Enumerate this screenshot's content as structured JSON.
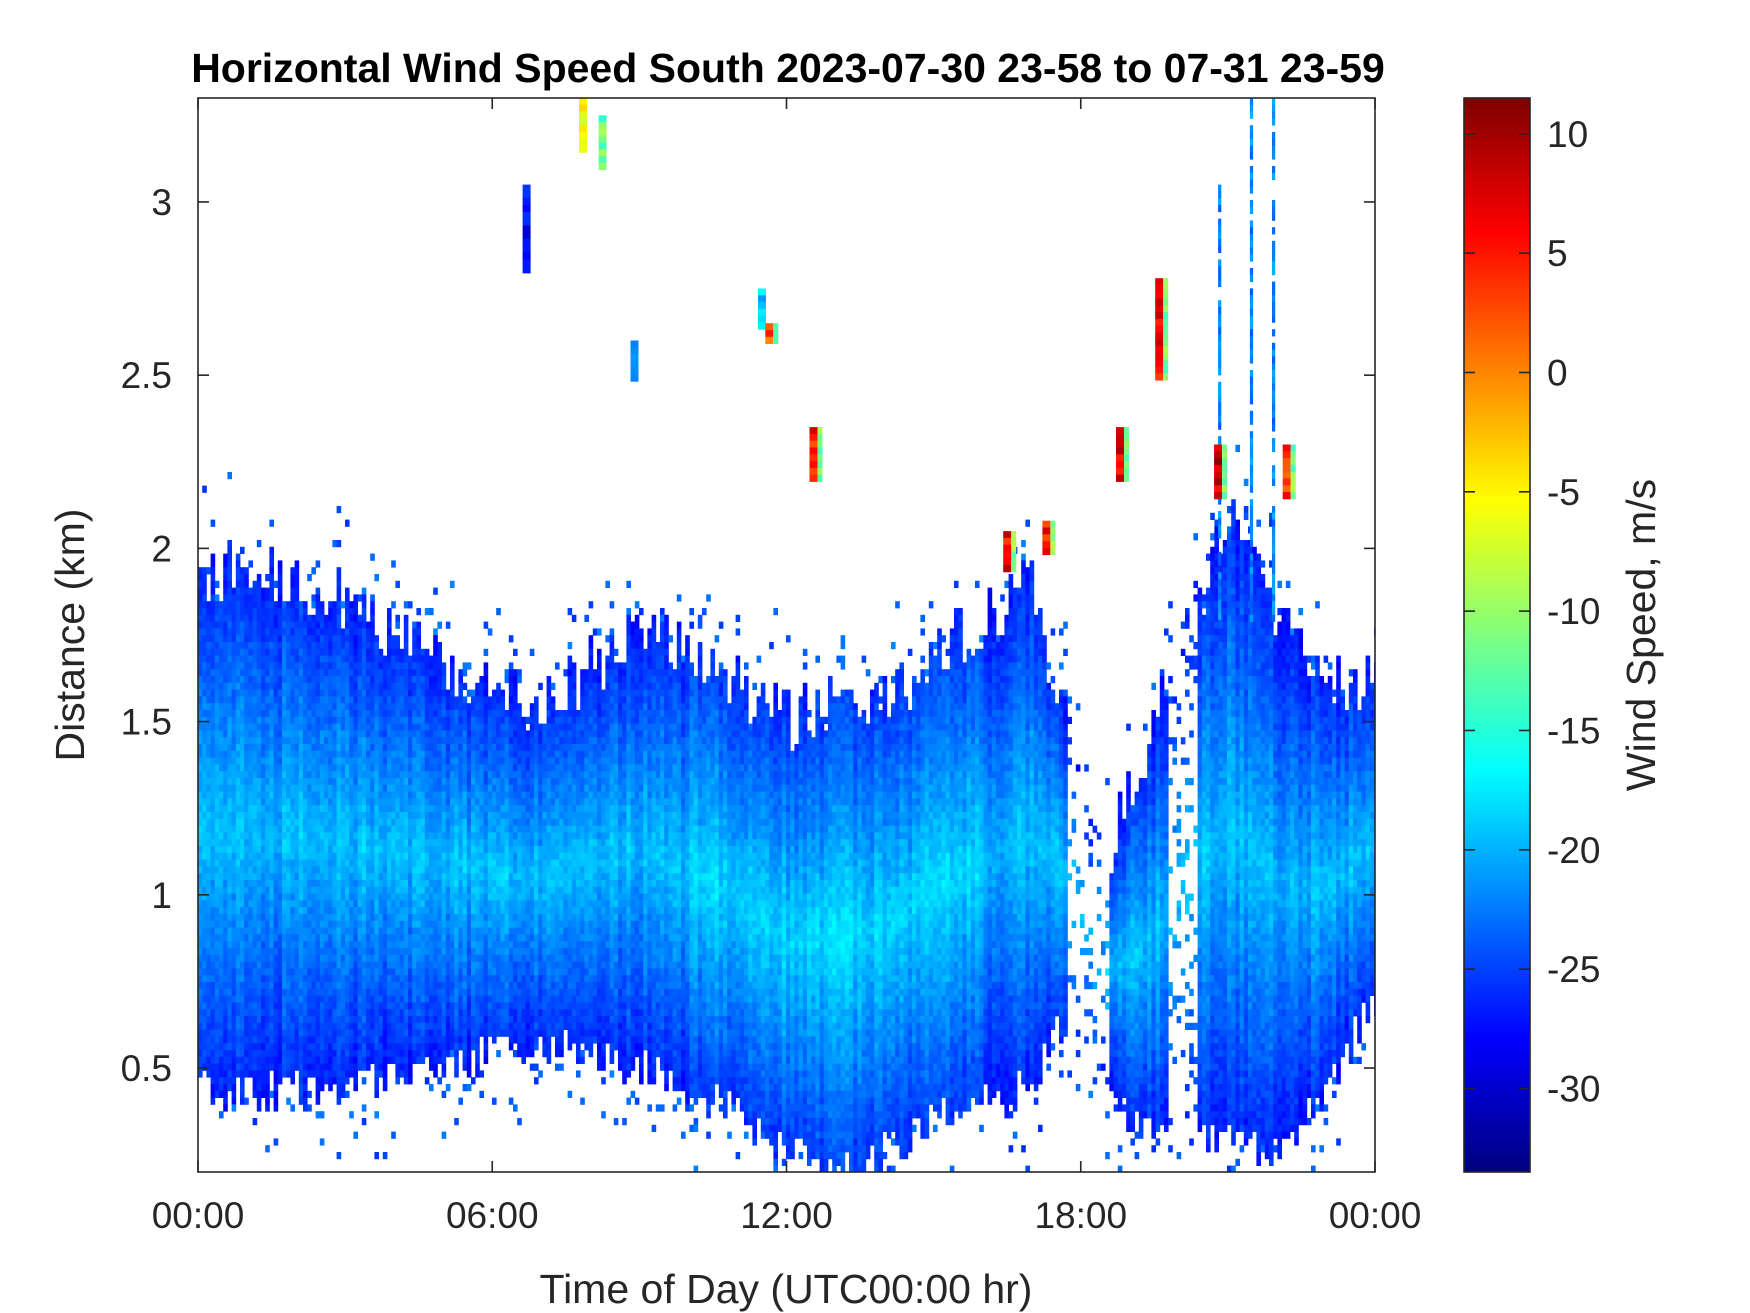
{
  "chart_data": {
    "type": "heatmap",
    "title": "Horizontal Wind Speed South 2023-07-30 23-58 to 07-31 23-59",
    "xlabel": "Time of Day (UTC00:00 hr)",
    "ylabel": "Distance (km)",
    "x_ticks": [
      "00:00",
      "06:00",
      "12:00",
      "18:00",
      "00:00"
    ],
    "x_tick_hours": [
      0,
      6,
      12,
      18,
      24
    ],
    "xlim_hours": [
      0,
      24
    ],
    "y_ticks": [
      "0.5",
      "1",
      "1.5",
      "2",
      "2.5",
      "3"
    ],
    "y_tick_values": [
      0.5,
      1,
      1.5,
      2,
      2.5,
      3
    ],
    "ylim": [
      0.2,
      3.3
    ],
    "colorbar": {
      "label": "Wind Speed, m/s",
      "ticks": [
        "10",
        "5",
        "0",
        "-5",
        "-10",
        "-15",
        "-20",
        "-25",
        "-30"
      ],
      "tick_values": [
        10,
        5,
        0,
        -5,
        -10,
        -15,
        -20,
        -25,
        -30
      ],
      "clim": [
        -33.5,
        11.5
      ],
      "colormap": "jet"
    },
    "grid": false,
    "data_extent": [
      {
        "hours": 0,
        "bottom_km": 0.45,
        "top_km": 1.9
      },
      {
        "hours": 1,
        "bottom_km": 0.42,
        "top_km": 1.97
      },
      {
        "hours": 2,
        "bottom_km": 0.45,
        "top_km": 1.9
      },
      {
        "hours": 3,
        "bottom_km": 0.45,
        "top_km": 1.85
      },
      {
        "hours": 4,
        "bottom_km": 0.5,
        "top_km": 1.75
      },
      {
        "hours": 5,
        "bottom_km": 0.5,
        "top_km": 1.68
      },
      {
        "hours": 6,
        "bottom_km": 0.55,
        "top_km": 1.58
      },
      {
        "hours": 7,
        "bottom_km": 0.55,
        "top_km": 1.55
      },
      {
        "hours": 8,
        "bottom_km": 0.55,
        "top_km": 1.65
      },
      {
        "hours": 9,
        "bottom_km": 0.5,
        "top_km": 1.78
      },
      {
        "hours": 10,
        "bottom_km": 0.45,
        "top_km": 1.7
      },
      {
        "hours": 11,
        "bottom_km": 0.38,
        "top_km": 1.6
      },
      {
        "hours": 12,
        "bottom_km": 0.25,
        "top_km": 1.5
      },
      {
        "hours": 13,
        "bottom_km": 0.2,
        "top_km": 1.55
      },
      {
        "hours": 14,
        "bottom_km": 0.25,
        "top_km": 1.55
      },
      {
        "hours": 15,
        "bottom_km": 0.35,
        "top_km": 1.7
      },
      {
        "hours": 16,
        "bottom_km": 0.4,
        "top_km": 1.78
      },
      {
        "hours": 17,
        "bottom_km": 0.45,
        "top_km": 1.9
      },
      {
        "hours": 17.5,
        "bottom_km": 0.6,
        "top_km": 1.6
      },
      {
        "hours": 18.5,
        "bottom_km": 0.45,
        "top_km": 1.1
      },
      {
        "hours": 19.3,
        "bottom_km": 0.3,
        "top_km": 1.4
      },
      {
        "hours": 21,
        "bottom_km": 0.3,
        "top_km": 2.1
      },
      {
        "hours": 22,
        "bottom_km": 0.25,
        "top_km": 1.8
      },
      {
        "hours": 23,
        "bottom_km": 0.45,
        "top_km": 1.6
      },
      {
        "hours": 24,
        "bottom_km": 0.7,
        "top_km": 1.6
      }
    ],
    "features": [
      {
        "hours": 6.7,
        "km_from": 2.8,
        "km_to": 3.05,
        "speed": -27
      },
      {
        "hours": 7.85,
        "km_from": 3.15,
        "km_to": 3.3,
        "speed": -6
      },
      {
        "hours": 8.25,
        "km_from": 3.1,
        "km_to": 3.25,
        "speed": -12
      },
      {
        "hours": 8.9,
        "km_from": 2.5,
        "km_to": 2.6,
        "speed": -22
      },
      {
        "hours": 11.5,
        "km_from": 2.65,
        "km_to": 2.75,
        "speed": -18
      },
      {
        "hours": 11.65,
        "km_from": 2.6,
        "km_to": 2.65,
        "speed": 2
      },
      {
        "hours": 12.55,
        "km_from": 2.2,
        "km_to": 2.35,
        "speed": 5
      },
      {
        "hours": 16.5,
        "km_from": 1.95,
        "km_to": 2.05,
        "speed": 6
      },
      {
        "hours": 17.3,
        "km_from": 2.0,
        "km_to": 2.08,
        "speed": 5
      },
      {
        "hours": 18.8,
        "km_from": 2.2,
        "km_to": 2.35,
        "speed": 7
      },
      {
        "hours": 19.6,
        "km_from": 2.5,
        "km_to": 2.78,
        "speed": 6
      },
      {
        "hours": 20.8,
        "km_from": 2.15,
        "km_to": 2.3,
        "speed": 8
      },
      {
        "hours": 22.2,
        "km_from": 2.15,
        "km_to": 2.3,
        "speed": 4
      }
    ],
    "high_columns": [
      {
        "hours": 20.8,
        "km_to": 3.05
      },
      {
        "hours": 21.45,
        "km_to": 3.3
      },
      {
        "hours": 21.9,
        "km_to": 3.3
      }
    ]
  }
}
